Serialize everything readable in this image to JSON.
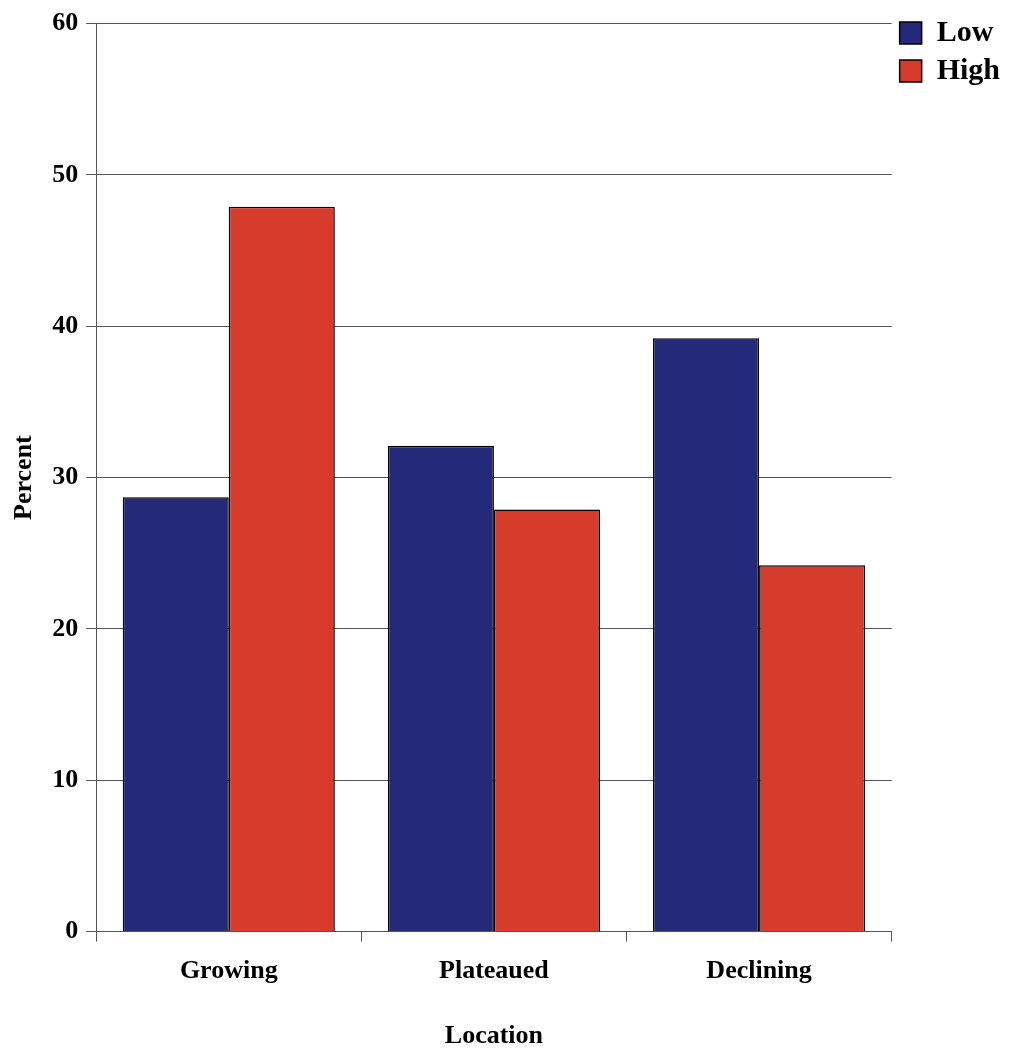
{
  "chart_data": {
    "type": "bar",
    "xlabel": "Location",
    "ylabel": "Percent",
    "categories": [
      "Growing",
      "Plateaued",
      "Declining"
    ],
    "series": [
      {
        "name": "Low",
        "color": "#25297a",
        "values": [
          28.7,
          32.1,
          39.2
        ]
      },
      {
        "name": "High",
        "color": "#d63b2c",
        "values": [
          47.9,
          27.9,
          24.2
        ]
      }
    ],
    "ylim": [
      0,
      60
    ],
    "yticks": [
      0,
      10,
      20,
      30,
      40,
      50,
      60
    ],
    "grid": "y",
    "legend": "top right"
  }
}
